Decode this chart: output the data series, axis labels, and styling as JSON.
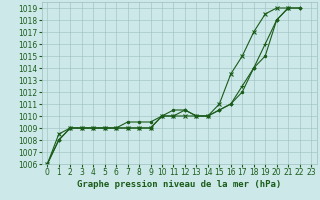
{
  "x": [
    0,
    1,
    2,
    3,
    4,
    5,
    6,
    7,
    8,
    9,
    10,
    11,
    12,
    13,
    14,
    15,
    16,
    17,
    18,
    19,
    20,
    21,
    22,
    23
  ],
  "line_color": "#1a5c1a",
  "bg_color": "#cce8e8",
  "grid_color": "#9dbfbf",
  "xlabel": "Graphe pression niveau de la mer (hPa)",
  "ylim_min": 1006,
  "ylim_max": 1019.5,
  "xlim_min": -0.5,
  "xlim_max": 23.5,
  "yticks": [
    1006,
    1007,
    1008,
    1009,
    1010,
    1011,
    1012,
    1013,
    1014,
    1015,
    1016,
    1017,
    1018,
    1019
  ],
  "xticks": [
    0,
    1,
    2,
    3,
    4,
    5,
    6,
    7,
    8,
    9,
    10,
    11,
    12,
    13,
    14,
    15,
    16,
    17,
    18,
    19,
    20,
    21,
    22,
    23
  ],
  "s1_x": [
    0,
    1,
    2,
    3,
    4,
    5,
    6,
    7,
    8,
    9,
    10,
    11,
    12,
    13,
    14,
    15,
    16,
    17,
    18,
    19,
    20,
    21,
    22
  ],
  "s1_y": [
    1006,
    1008,
    1009,
    1009,
    1009,
    1009,
    1009,
    1009,
    1009,
    1009,
    1010,
    1010,
    1010.5,
    1010,
    1010,
    1010.5,
    1011,
    1012.5,
    1014,
    1016,
    1018,
    1019,
    1019
  ],
  "s2_x": [
    0,
    1,
    2,
    3,
    4,
    5,
    6,
    7,
    8,
    9,
    10,
    11,
    12,
    13,
    14,
    15,
    16,
    17,
    18,
    19,
    20,
    21
  ],
  "s2_y": [
    1006,
    1008.5,
    1009,
    1009,
    1009,
    1009,
    1009,
    1009,
    1009,
    1009,
    1010,
    1010,
    1010,
    1010,
    1010,
    1011,
    1013.5,
    1015,
    1017,
    1018.5,
    1019,
    1019
  ],
  "s3_x": [
    0,
    1,
    2,
    3,
    4,
    5,
    6,
    7,
    8,
    9,
    10,
    11,
    12,
    13,
    14,
    15,
    16,
    17,
    18,
    19,
    20,
    21,
    22
  ],
  "s3_y": [
    1006,
    1008,
    1009,
    1009,
    1009,
    1009,
    1009,
    1009.5,
    1009.5,
    1009.5,
    1010,
    1010.5,
    1010.5,
    1010,
    1010,
    1010.5,
    1011,
    1012,
    1014,
    1015,
    1018,
    1019,
    1019
  ],
  "tick_fontsize": 5.5,
  "xlabel_fontsize": 6.5
}
